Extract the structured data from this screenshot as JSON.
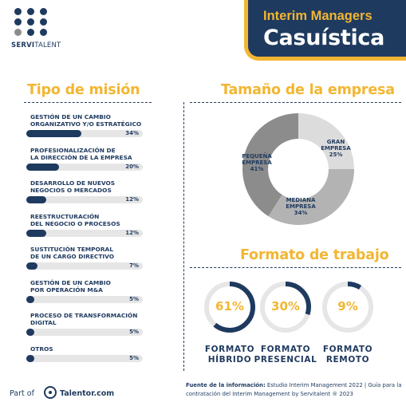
{
  "brand": {
    "name_bold": "SERVI",
    "name_rest": "TALENT"
  },
  "banner": {
    "subtitle": "Interim Managers",
    "title": "Casuística"
  },
  "colors": {
    "navy": "#1f3a5f",
    "gold": "#f2b632",
    "track": "#e6e6e6",
    "logo_grey": "#8c8c8c"
  },
  "chart_data": [
    {
      "type": "bar",
      "title": "Tipo de misión",
      "orientation": "horizontal",
      "xlim": [
        0,
        100
      ],
      "categories": [
        "GESTIÓN DE UN CAMBIO\nORGANIZATIVO Y/O ESTRATÉGICO",
        "PROFESIONALIZACIÓN DE\nLA DIRECCIÓN DE LA EMPRESA",
        "DESARROLLO DE NUEVOS\nNEGOCIOS O MERCADOS",
        "REESTRUCTURACIÓN\nDEL NEGOCIO O PROCESOS",
        "SUSTITUCIÓN TEMPORAL\nDE UN CARGO DIRECTIVO",
        "GESTIÓN DE UN CAMBIO\nPOR OPERACIÓN M&A",
        "PROCESO DE TRANSFORMACIÓN\nDIGITAL",
        "OTROS"
      ],
      "values": [
        34,
        20,
        12,
        12,
        7,
        5,
        5,
        5
      ],
      "value_labels": [
        "34%",
        "20%",
        "12%",
        "12%",
        "7%",
        "5%",
        "5%",
        "5%"
      ]
    },
    {
      "type": "pie",
      "title": "Tamaño de la empresa",
      "donut": true,
      "slices": [
        {
          "label": "GRAN\nEMPRESA\n25%",
          "value": 25,
          "color": "#dcdcdc"
        },
        {
          "label": "MEDIANA\nEMPRESA\n34%",
          "value": 34,
          "color": "#b3b3b3"
        },
        {
          "label": "PEQUEÑA\nEMPRESA\n41%",
          "value": 41,
          "color": "#8c8c8c"
        }
      ]
    },
    {
      "type": "pie",
      "title": "Formato de trabajo",
      "rings": [
        {
          "label": "FORMATO\nHÍBRIDO",
          "value": 61,
          "value_label": "61%"
        },
        {
          "label": "FORMATO\nPRESENCIAL",
          "value": 30,
          "value_label": "30%"
        },
        {
          "label": "FORMATO\nREMOTO",
          "value": 9,
          "value_label": "9%"
        }
      ]
    }
  ],
  "footer": {
    "part_of": "Part of",
    "partner": "Talentor.com",
    "source_bold": "Fuente de la información:",
    "source_text": " Estudio Interim Management 2022 | Guía para la contratación del Interim Management by Servitalent ® 2023"
  }
}
